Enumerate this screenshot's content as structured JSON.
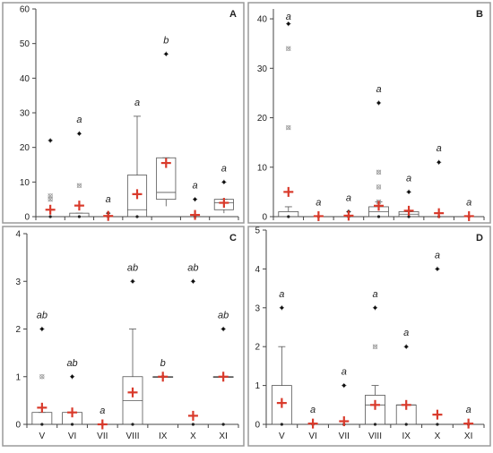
{
  "panel_labels": [
    "A",
    "B",
    "C",
    "D"
  ],
  "colors": {
    "mean": "#d93a2b",
    "axis": "#444444",
    "box": "#555555",
    "frame": "#9a9a9a",
    "text": "#222222"
  },
  "chart_data": [
    {
      "id": "A",
      "type": "box",
      "categories": [
        "V",
        "VI",
        "VII",
        "VIII",
        "IX",
        "X",
        "XI"
      ],
      "yticks": [
        0,
        10,
        20,
        30,
        40,
        50,
        60
      ],
      "ylim": [
        0,
        60
      ],
      "show_xlabels": false,
      "groups": [
        {
          "category": "V",
          "box": null,
          "mean": 2.0,
          "extremes": [
            22
          ],
          "outliers": [
            6,
            5
          ],
          "zero_mark": true,
          "letter": null
        },
        {
          "category": "VI",
          "box": {
            "q1": 0,
            "median": 0,
            "q3": 1,
            "whisker_low": 0,
            "whisker_high": 1
          },
          "mean": 3.2,
          "extremes": [
            24
          ],
          "outliers": [
            9
          ],
          "zero_mark": true,
          "letter": "a"
        },
        {
          "category": "VII",
          "box": null,
          "mean": 0.2,
          "extremes": [
            1
          ],
          "outliers": [],
          "zero_mark": true,
          "letter": "a"
        },
        {
          "category": "VIII",
          "box": {
            "q1": 0,
            "median": 2,
            "q3": 12,
            "whisker_low": 0,
            "whisker_high": 29
          },
          "mean": 6.5,
          "extremes": [],
          "outliers": [],
          "zero_mark": true,
          "letter": "a"
        },
        {
          "category": "IX",
          "box": {
            "q1": 5,
            "median": 7,
            "q3": 17,
            "whisker_low": 3,
            "whisker_high": 17
          },
          "mean": 15.5,
          "extremes": [
            47
          ],
          "outliers": [],
          "zero_mark": false,
          "letter": "b"
        },
        {
          "category": "X",
          "box": null,
          "mean": 0.5,
          "extremes": [
            5
          ],
          "outliers": [],
          "zero_mark": true,
          "letter": "a"
        },
        {
          "category": "XI",
          "box": {
            "q1": 2,
            "median": 4,
            "q3": 5,
            "whisker_low": 1,
            "whisker_high": 5
          },
          "mean": 4.0,
          "extremes": [
            10
          ],
          "outliers": [],
          "zero_mark": false,
          "letter": "a"
        }
      ]
    },
    {
      "id": "B",
      "type": "box",
      "categories": [
        "V",
        "VI",
        "VII",
        "VIII",
        "IX",
        "X",
        "XI"
      ],
      "yticks": [
        0,
        10,
        20,
        30,
        40
      ],
      "ylim": [
        0,
        42
      ],
      "show_xlabels": false,
      "groups": [
        {
          "category": "V",
          "box": {
            "q1": 0,
            "median": 0,
            "q3": 1,
            "whisker_low": 0,
            "whisker_high": 2
          },
          "mean": 5.0,
          "extremes": [
            39
          ],
          "outliers": [
            34,
            18
          ],
          "zero_mark": true,
          "letter": "a"
        },
        {
          "category": "VI",
          "box": null,
          "mean": 0.1,
          "extremes": [],
          "outliers": [],
          "zero_mark": true,
          "letter": "a"
        },
        {
          "category": "VII",
          "box": null,
          "mean": 0.2,
          "extremes": [
            1
          ],
          "outliers": [],
          "zero_mark": true,
          "letter": "a"
        },
        {
          "category": "VIII",
          "box": {
            "q1": 0,
            "median": 1,
            "q3": 2,
            "whisker_low": 0,
            "whisker_high": 3
          },
          "mean": 2.2,
          "extremes": [
            23
          ],
          "outliers": [
            9,
            6,
            3
          ],
          "zero_mark": true,
          "letter": "a"
        },
        {
          "category": "IX",
          "box": {
            "q1": 0,
            "median": 0.5,
            "q3": 1,
            "whisker_low": 0,
            "whisker_high": 1
          },
          "mean": 1.2,
          "extremes": [
            5
          ],
          "outliers": [],
          "zero_mark": true,
          "letter": "a"
        },
        {
          "category": "X",
          "box": null,
          "mean": 0.7,
          "extremes": [
            11
          ],
          "outliers": [],
          "zero_mark": true,
          "letter": "a"
        },
        {
          "category": "XI",
          "box": null,
          "mean": 0.1,
          "extremes": [],
          "outliers": [],
          "zero_mark": true,
          "letter": "a"
        }
      ]
    },
    {
      "id": "C",
      "type": "box",
      "categories": [
        "V",
        "VI",
        "VII",
        "VIII",
        "IX",
        "X",
        "XI"
      ],
      "yticks": [
        0,
        1,
        2,
        3,
        4
      ],
      "ylim": [
        0,
        4
      ],
      "show_xlabels": true,
      "groups": [
        {
          "category": "V",
          "box": {
            "q1": 0,
            "median": 0,
            "q3": 0.25,
            "whisker_low": 0,
            "whisker_high": 0.25
          },
          "mean": 0.35,
          "extremes": [
            2
          ],
          "outliers": [
            1
          ],
          "zero_mark": true,
          "letter": "ab"
        },
        {
          "category": "VI",
          "box": {
            "q1": 0,
            "median": 0,
            "q3": 0.25,
            "whisker_low": 0,
            "whisker_high": 0.25
          },
          "mean": 0.25,
          "extremes": [
            1
          ],
          "outliers": [],
          "zero_mark": true,
          "letter": "ab"
        },
        {
          "category": "VII",
          "box": null,
          "mean": 0.0,
          "extremes": [],
          "outliers": [],
          "zero_mark": true,
          "letter": "a"
        },
        {
          "category": "VIII",
          "box": {
            "q1": 0,
            "median": 0.5,
            "q3": 1,
            "whisker_low": 0,
            "whisker_high": 2
          },
          "mean": 0.67,
          "extremes": [
            3
          ],
          "outliers": [],
          "zero_mark": true,
          "letter": "ab"
        },
        {
          "category": "IX",
          "box": {
            "q1": 1,
            "median": 1,
            "q3": 1,
            "whisker_low": 1,
            "whisker_high": 1
          },
          "mean": 1.0,
          "extremes": [
            1
          ],
          "outliers": [],
          "zero_mark": false,
          "letter": "b"
        },
        {
          "category": "X",
          "box": null,
          "mean": 0.18,
          "extremes": [
            3
          ],
          "outliers": [],
          "zero_mark": true,
          "letter": "ab"
        },
        {
          "category": "XI",
          "box": {
            "q1": 1,
            "median": 1,
            "q3": 1,
            "whisker_low": 1,
            "whisker_high": 1
          },
          "mean": 1.0,
          "extremes": [
            2
          ],
          "outliers": [],
          "zero_mark": true,
          "letter": "ab"
        }
      ]
    },
    {
      "id": "D",
      "type": "box",
      "categories": [
        "V",
        "VI",
        "VII",
        "VIII",
        "IX",
        "X",
        "XI"
      ],
      "yticks": [
        0,
        1,
        2,
        3,
        4,
        5
      ],
      "ylim": [
        0,
        5
      ],
      "show_xlabels": true,
      "groups": [
        {
          "category": "V",
          "box": {
            "q1": 0,
            "median": 0,
            "q3": 1,
            "whisker_low": 0,
            "whisker_high": 2
          },
          "mean": 0.55,
          "extremes": [
            3
          ],
          "outliers": [],
          "zero_mark": true,
          "letter": "a"
        },
        {
          "category": "VI",
          "box": null,
          "mean": 0.02,
          "extremes": [],
          "outliers": [],
          "zero_mark": true,
          "letter": "a"
        },
        {
          "category": "VII",
          "box": null,
          "mean": 0.08,
          "extremes": [
            1
          ],
          "outliers": [],
          "zero_mark": true,
          "letter": "a"
        },
        {
          "category": "VIII",
          "box": {
            "q1": 0,
            "median": 0.5,
            "q3": 0.75,
            "whisker_low": 0,
            "whisker_high": 1
          },
          "mean": 0.5,
          "extremes": [
            3
          ],
          "outliers": [
            2
          ],
          "zero_mark": true,
          "letter": "a"
        },
        {
          "category": "IX",
          "box": {
            "q1": 0,
            "median": 0.5,
            "q3": 0.5,
            "whisker_low": 0,
            "whisker_high": 0.5
          },
          "mean": 0.5,
          "extremes": [
            2
          ],
          "outliers": [],
          "zero_mark": true,
          "letter": "a"
        },
        {
          "category": "X",
          "box": null,
          "mean": 0.25,
          "extremes": [
            4
          ],
          "outliers": [],
          "zero_mark": true,
          "letter": "a"
        },
        {
          "category": "XI",
          "box": null,
          "mean": 0.02,
          "extremes": [],
          "outliers": [],
          "zero_mark": true,
          "letter": "a"
        }
      ]
    }
  ]
}
